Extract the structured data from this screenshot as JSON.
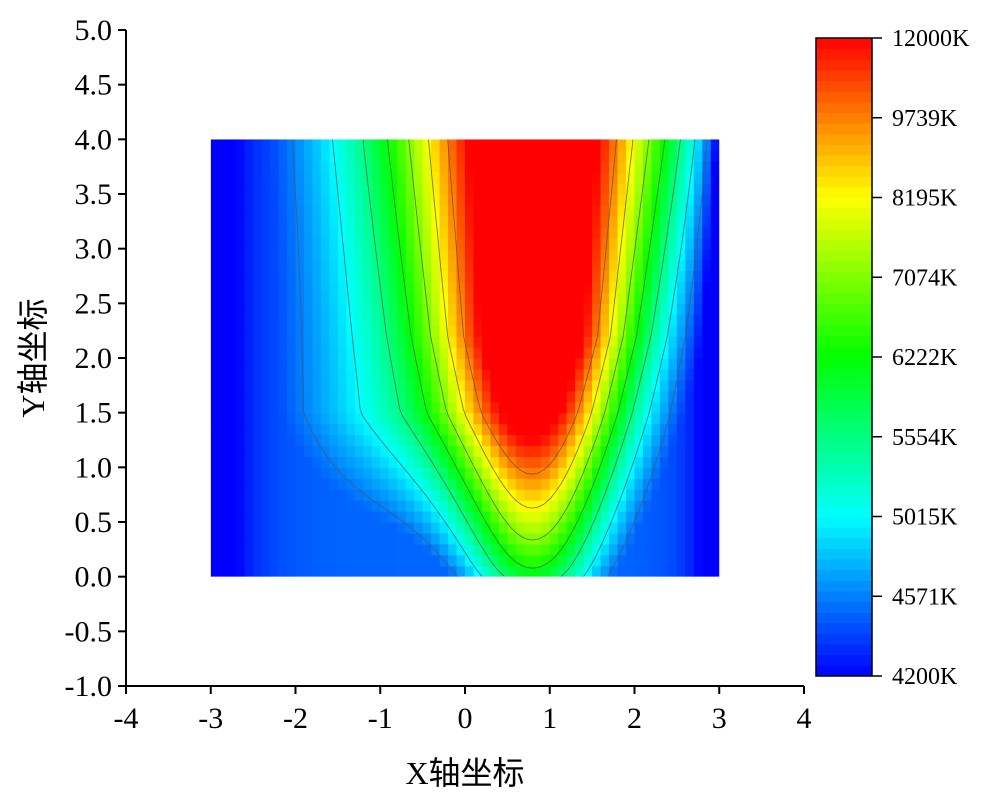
{
  "chart_data": {
    "type": "heatmap",
    "title": "",
    "xlabel": "X轴坐标",
    "ylabel": "Y轴坐标",
    "xlim": [
      -4,
      4
    ],
    "ylim": [
      -1.0,
      5.0
    ],
    "x_ticks": [
      "-4",
      "-3",
      "-2",
      "-1",
      "0",
      "1",
      "2",
      "3",
      "4"
    ],
    "y_ticks": [
      "-1.0",
      "-0.5",
      "0.0",
      "0.5",
      "1.0",
      "1.5",
      "2.0",
      "2.5",
      "3.0",
      "3.5",
      "4.0",
      "4.5",
      "5.0"
    ],
    "data_extent": {
      "x": [
        -3,
        3
      ],
      "y": [
        0.0,
        4.0
      ]
    },
    "colorbar": {
      "min": 4200,
      "max": 12000,
      "unit": "K",
      "labels": [
        "12000K",
        "9739K",
        "8195K",
        "7074K",
        "6222K",
        "5554K",
        "5015K",
        "4571K",
        "4200K"
      ],
      "label_values": [
        12000,
        9739,
        8195,
        7074,
        6222,
        5554,
        5015,
        4571,
        4200
      ],
      "colors": [
        "#0000ff",
        "#00ffff",
        "#00ff00",
        "#ffff00",
        "#ff0000"
      ]
    },
    "field_summary": {
      "peak": {
        "x": 1.0,
        "y": 3.2,
        "value": 11000
      },
      "cold_edges": [
        {
          "x": -3.0,
          "value": 4300
        },
        {
          "x": 3.0,
          "value": 4400
        }
      ],
      "contour_levels": 7
    },
    "legend": "right-colorbar",
    "grid": false
  }
}
